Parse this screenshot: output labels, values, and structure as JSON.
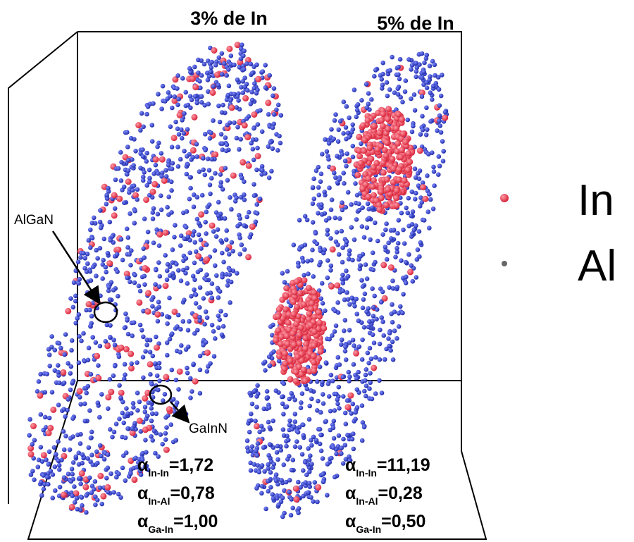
{
  "panels": [
    {
      "title": "3% de In",
      "annotation": "AlGaN",
      "alphas": [
        {
          "symbol": "α",
          "sub": "In-In",
          "value": "=1,72"
        },
        {
          "symbol": "α",
          "sub": "In-Al",
          "value": "=0,78"
        },
        {
          "symbol": "α",
          "sub": "Ga-In",
          "value": "=1,00"
        }
      ]
    },
    {
      "title": "5% de In",
      "annotation": "GaInN",
      "alphas": [
        {
          "symbol": "α",
          "sub": "In-In",
          "value": "=11,19"
        },
        {
          "symbol": "α",
          "sub": "In-Al",
          "value": "=0,28"
        },
        {
          "symbol": "α",
          "sub": "Ga-In",
          "value": "=0,50"
        }
      ]
    }
  ],
  "legend": [
    {
      "label": "In"
    },
    {
      "label": "Al"
    }
  ]
}
